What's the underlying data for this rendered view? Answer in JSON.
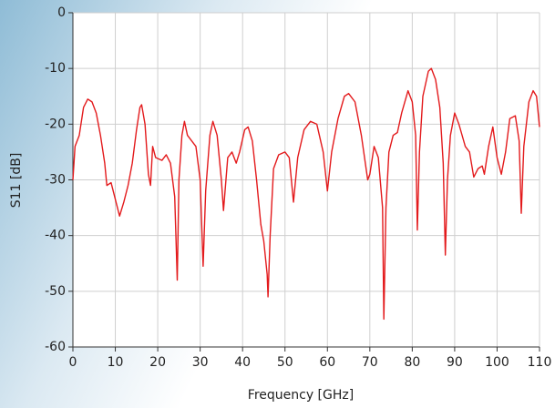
{
  "chart_data": {
    "type": "line",
    "x_label": "Frequency [GHz]",
    "y_label": "S11 [dB]",
    "xlim": [
      0,
      110
    ],
    "ylim": [
      -60,
      0
    ],
    "xticks": [
      0,
      10,
      20,
      30,
      40,
      50,
      60,
      70,
      80,
      90,
      100,
      110
    ],
    "yticks": [
      -60,
      -50,
      -40,
      -30,
      -20,
      -10,
      0
    ],
    "grid": true,
    "x": [
      0,
      0.5,
      1.5,
      2.5,
      3.5,
      4.5,
      5.5,
      6.5,
      7.5,
      8,
      9,
      9.5,
      10.5,
      11,
      12,
      13,
      14,
      15,
      15.8,
      16.2,
      17,
      17.8,
      18.3,
      18.8,
      19.5,
      21,
      22,
      23,
      24,
      24.6,
      25,
      25.7,
      26.3,
      27,
      28,
      29,
      30,
      30.7,
      31.3,
      32.3,
      33,
      34,
      35,
      35.5,
      36.5,
      37.5,
      38.5,
      39.3,
      40.5,
      41.3,
      42.3,
      43.3,
      44.3,
      45,
      45.8,
      46,
      46.5,
      47.3,
      48.5,
      50,
      51,
      52,
      53,
      54.5,
      56,
      57.5,
      59,
      60,
      61,
      62.5,
      64,
      65,
      66.5,
      68,
      69.5,
      70,
      71,
      72,
      73,
      73.3,
      73.8,
      74.5,
      75.5,
      76.5,
      77.5,
      79,
      80,
      80.8,
      81.2,
      81.7,
      82.5,
      83.8,
      84.5,
      85.5,
      86.5,
      87.3,
      87.8,
      88.3,
      89,
      90,
      91,
      92.5,
      93.5,
      94.5,
      95.5,
      96.5,
      97,
      98,
      99,
      100,
      101,
      102,
      103,
      104.3,
      105.2,
      105.7,
      106.3,
      107.5,
      108.5,
      109.3,
      110
    ],
    "series": [
      {
        "color": "#e31a1c",
        "values": [
          -30,
          -24,
          -22,
          -17,
          -15.5,
          -16,
          -18,
          -22,
          -27,
          -31,
          -30.5,
          -32,
          -35,
          -36.5,
          -34,
          -31,
          -27,
          -21,
          -17,
          -16.5,
          -20,
          -29,
          -31,
          -24,
          -26,
          -26.5,
          -25.5,
          -27,
          -33,
          -48,
          -30,
          -22,
          -19.5,
          -22,
          -23,
          -24,
          -30,
          -45.5,
          -32,
          -22,
          -19.5,
          -22,
          -30,
          -35.5,
          -26,
          -25,
          -27,
          -25,
          -21,
          -20.5,
          -23,
          -30,
          -38,
          -41,
          -47,
          -51,
          -40,
          -28,
          -25.5,
          -25,
          -26,
          -34,
          -26,
          -21,
          -19.5,
          -20,
          -25,
          -32,
          -25,
          -19,
          -15,
          -14.5,
          -16,
          -22,
          -30,
          -29,
          -24,
          -26,
          -35,
          -55,
          -35,
          -25,
          -22,
          -21.5,
          -18,
          -14,
          -16,
          -22,
          -39,
          -25,
          -15,
          -10.5,
          -10,
          -12,
          -17,
          -27,
          -43.5,
          -30,
          -22,
          -18,
          -20,
          -24,
          -25,
          -29.5,
          -28,
          -27.5,
          -29,
          -24,
          -20.5,
          -26,
          -29,
          -25,
          -19,
          -18.5,
          -23,
          -36,
          -24,
          -16,
          -14,
          -15,
          -20.5
        ]
      }
    ]
  }
}
